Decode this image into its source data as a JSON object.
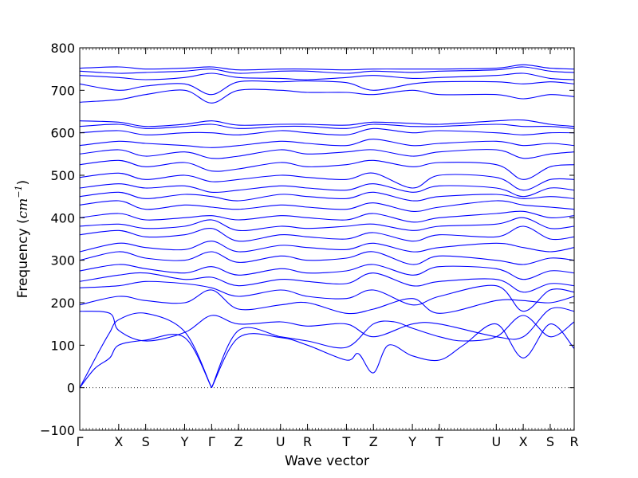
{
  "chart_data": {
    "type": "line",
    "xlabel": "Wave vector",
    "ylabel": "Frequency ",
    "ylabel_unit_base": "cm",
    "ylabel_unit_exp": "−1",
    "ylim": [
      -100,
      800
    ],
    "yticks": [
      -100,
      0,
      100,
      200,
      300,
      400,
      500,
      600,
      700,
      800
    ],
    "xlim": [
      0,
      16.5
    ],
    "grid": false,
    "zero_line": {
      "y": 0,
      "style": "dotted"
    },
    "line_color": "#0000ff",
    "high_symmetry_points": [
      {
        "label": "Γ",
        "x": 0
      },
      {
        "label": "X",
        "x": 1.3
      },
      {
        "label": "S",
        "x": 2.2
      },
      {
        "label": "Y",
        "x": 3.5
      },
      {
        "label": "Γ",
        "x": 4.4
      },
      {
        "label": "Z",
        "x": 5.3
      },
      {
        "label": "U",
        "x": 6.7
      },
      {
        "label": "R",
        "x": 7.6
      },
      {
        "label": "T",
        "x": 8.9
      },
      {
        "label": "Z",
        "x": 9.8
      },
      {
        "label": "Y",
        "x": 11.1
      },
      {
        "label": "T",
        "x": 12.0
      },
      {
        "label": "U",
        "x": 13.9
      },
      {
        "label": "X",
        "x": 14.8
      },
      {
        "label": "S",
        "x": 15.7
      },
      {
        "label": "R",
        "x": 16.5
      }
    ],
    "series": [
      {
        "x": [
          0,
          0.5,
          1.0,
          1.3,
          2.2,
          3.5,
          4.4
        ],
        "y": [
          0,
          45,
          70,
          100,
          112,
          118,
          0
        ]
      },
      {
        "x": [
          0,
          0.6,
          1.0,
          1.3,
          2.2,
          3.5,
          4.4
        ],
        "y": [
          0,
          80,
          130,
          160,
          175,
          132,
          0
        ]
      },
      {
        "x": [
          4.4,
          5.3,
          6.7,
          7.6,
          8.9,
          9.3,
          9.8,
          10.3,
          11.1,
          12.0,
          12.8,
          13.9,
          14.8,
          15.7,
          16.5
        ],
        "y": [
          0,
          118,
          118,
          100,
          65,
          80,
          35,
          100,
          75,
          65,
          100,
          150,
          70,
          150,
          92
        ]
      },
      {
        "x": [
          4.4,
          5.3,
          6.7,
          7.6,
          8.9,
          9.8,
          10.5,
          11.1,
          12.0,
          12.8,
          13.9,
          14.8,
          15.7,
          16.5
        ],
        "y": [
          0,
          135,
          120,
          110,
          95,
          150,
          155,
          140,
          120,
          110,
          120,
          170,
          120,
          155
        ]
      },
      {
        "x": [
          0,
          1.0,
          1.3,
          2.2,
          3.5,
          4.4,
          5.3,
          6.7,
          7.6,
          8.9,
          9.8,
          11.1,
          12.0,
          13.9,
          14.8,
          15.7,
          16.5
        ],
        "y": [
          180,
          175,
          135,
          110,
          130,
          170,
          150,
          155,
          145,
          150,
          120,
          150,
          150,
          120,
          120,
          185,
          180
        ]
      },
      {
        "x": [
          0,
          1.3,
          2.2,
          3.5,
          4.4,
          5.3,
          6.7,
          7.6,
          8.9,
          9.8,
          11.1,
          12.0,
          13.9,
          14.8,
          15.7,
          16.5
        ],
        "y": [
          195,
          215,
          205,
          200,
          230,
          185,
          195,
          200,
          175,
          185,
          210,
          175,
          205,
          205,
          200,
          215
        ]
      },
      {
        "x": [
          0,
          1.3,
          2.2,
          3.5,
          4.4,
          5.3,
          6.7,
          7.6,
          8.9,
          9.8,
          11.1,
          12.0,
          13.9,
          14.8,
          15.7,
          16.5
        ],
        "y": [
          235,
          240,
          250,
          245,
          235,
          215,
          230,
          215,
          210,
          230,
          195,
          215,
          240,
          180,
          230,
          225
        ]
      },
      {
        "x": [
          0,
          1.3,
          2.2,
          3.5,
          4.4,
          5.3,
          6.7,
          7.6,
          8.9,
          9.8,
          11.1,
          12.0,
          13.9,
          14.8,
          15.7,
          16.5
        ],
        "y": [
          250,
          265,
          270,
          255,
          260,
          240,
          255,
          250,
          245,
          270,
          240,
          250,
          255,
          225,
          245,
          240
        ]
      },
      {
        "x": [
          0,
          1.3,
          2.2,
          3.5,
          4.4,
          5.3,
          6.7,
          7.6,
          8.9,
          9.8,
          11.1,
          12.0,
          13.9,
          14.8,
          15.7,
          16.5
        ],
        "y": [
          275,
          290,
          280,
          270,
          285,
          265,
          280,
          270,
          275,
          290,
          265,
          285,
          280,
          255,
          275,
          270
        ]
      },
      {
        "x": [
          0,
          1.3,
          2.2,
          3.5,
          4.4,
          5.3,
          6.7,
          7.6,
          8.9,
          9.8,
          11.1,
          12.0,
          13.9,
          14.8,
          15.7,
          16.5
        ],
        "y": [
          300,
          320,
          305,
          300,
          320,
          295,
          310,
          300,
          305,
          320,
          290,
          310,
          300,
          290,
          305,
          300
        ]
      },
      {
        "x": [
          0,
          1.3,
          2.2,
          3.5,
          4.4,
          5.3,
          6.7,
          7.6,
          8.9,
          9.8,
          11.1,
          12.0,
          13.9,
          14.8,
          15.7,
          16.5
        ],
        "y": [
          320,
          340,
          330,
          325,
          345,
          320,
          335,
          330,
          325,
          340,
          320,
          330,
          340,
          330,
          320,
          330
        ]
      },
      {
        "x": [
          0,
          1.3,
          2.2,
          3.5,
          4.4,
          5.3,
          6.7,
          7.6,
          8.9,
          9.8,
          11.1,
          12.0,
          13.9,
          14.8,
          15.7,
          16.5
        ],
        "y": [
          360,
          370,
          355,
          360,
          375,
          345,
          360,
          355,
          350,
          365,
          345,
          360,
          355,
          380,
          350,
          355
        ]
      },
      {
        "x": [
          0,
          1.3,
          2.2,
          3.5,
          4.4,
          5.3,
          6.7,
          7.6,
          8.9,
          9.8,
          11.1,
          12.0,
          13.9,
          14.8,
          15.7,
          16.5
        ],
        "y": [
          380,
          385,
          375,
          380,
          395,
          370,
          380,
          375,
          380,
          385,
          370,
          380,
          385,
          400,
          375,
          380
        ]
      },
      {
        "x": [
          0,
          1.3,
          2.2,
          3.5,
          4.4,
          5.3,
          6.7,
          7.6,
          8.9,
          9.8,
          11.1,
          12.0,
          13.9,
          14.8,
          15.7,
          16.5
        ],
        "y": [
          400,
          410,
          395,
          400,
          405,
          395,
          405,
          400,
          395,
          410,
          390,
          400,
          410,
          415,
          400,
          405
        ]
      },
      {
        "x": [
          0,
          1.3,
          2.2,
          3.5,
          4.4,
          5.3,
          6.7,
          7.6,
          8.9,
          9.8,
          11.1,
          12.0,
          13.9,
          14.8,
          15.7,
          16.5
        ],
        "y": [
          430,
          440,
          420,
          430,
          425,
          420,
          430,
          425,
          420,
          435,
          415,
          425,
          440,
          430,
          425,
          420
        ]
      },
      {
        "x": [
          0,
          1.3,
          2.2,
          3.5,
          4.4,
          5.3,
          6.7,
          7.6,
          8.9,
          9.8,
          11.1,
          12.0,
          13.9,
          14.8,
          15.7,
          16.5
        ],
        "y": [
          450,
          460,
          445,
          455,
          450,
          440,
          455,
          450,
          445,
          460,
          440,
          450,
          455,
          445,
          450,
          445
        ]
      },
      {
        "x": [
          0,
          1.3,
          2.2,
          3.5,
          4.4,
          5.3,
          6.7,
          7.6,
          8.9,
          9.8,
          11.1,
          12.0,
          13.9,
          14.8,
          15.7,
          16.5
        ],
        "y": [
          470,
          480,
          470,
          475,
          460,
          465,
          475,
          470,
          465,
          480,
          460,
          475,
          470,
          450,
          470,
          465
        ]
      },
      {
        "x": [
          0,
          1.3,
          2.2,
          3.5,
          4.4,
          5.3,
          6.7,
          7.6,
          8.9,
          9.8,
          11.1,
          12.0,
          13.9,
          14.8,
          15.7,
          16.5
        ],
        "y": [
          495,
          505,
          490,
          500,
          485,
          490,
          500,
          495,
          490,
          505,
          470,
          500,
          495,
          465,
          490,
          490
        ]
      },
      {
        "x": [
          0,
          1.3,
          2.2,
          3.5,
          4.4,
          5.3,
          6.7,
          7.6,
          8.9,
          9.8,
          11.1,
          12.0,
          13.9,
          14.8,
          15.7,
          16.5
        ],
        "y": [
          525,
          535,
          520,
          530,
          510,
          515,
          530,
          520,
          525,
          535,
          520,
          530,
          525,
          490,
          520,
          525
        ]
      },
      {
        "x": [
          0,
          1.3,
          2.2,
          3.5,
          4.4,
          5.3,
          6.7,
          7.6,
          8.9,
          9.8,
          11.1,
          12.0,
          13.9,
          14.8,
          15.7,
          16.5
        ],
        "y": [
          550,
          560,
          545,
          555,
          540,
          545,
          560,
          550,
          555,
          560,
          545,
          555,
          560,
          540,
          550,
          555
        ]
      },
      {
        "x": [
          0,
          1.3,
          2.2,
          3.5,
          4.4,
          5.3,
          6.7,
          7.6,
          8.9,
          9.8,
          11.1,
          12.0,
          13.9,
          14.8,
          15.7,
          16.5
        ],
        "y": [
          570,
          580,
          575,
          570,
          565,
          570,
          580,
          575,
          570,
          585,
          570,
          575,
          580,
          570,
          575,
          570
        ]
      },
      {
        "x": [
          0,
          1.3,
          2.2,
          3.5,
          4.4,
          5.3,
          6.7,
          7.6,
          8.9,
          9.8,
          11.1,
          12.0,
          13.9,
          14.8,
          15.7,
          16.5
        ],
        "y": [
          600,
          605,
          595,
          600,
          600,
          595,
          605,
          600,
          595,
          610,
          600,
          605,
          600,
          595,
          600,
          600
        ]
      },
      {
        "x": [
          0,
          1.3,
          2.2,
          3.5,
          4.4,
          5.3,
          6.7,
          7.6,
          8.9,
          9.8,
          11.1,
          12.0,
          13.9,
          14.8,
          15.7,
          16.5
        ],
        "y": [
          615,
          620,
          610,
          615,
          620,
          610,
          615,
          615,
          610,
          620,
          615,
          615,
          620,
          615,
          615,
          610
        ]
      },
      {
        "x": [
          0,
          1.3,
          2.2,
          3.5,
          4.4,
          5.3,
          6.7,
          7.6,
          8.9,
          9.8,
          11.1,
          12.0,
          13.9,
          14.8,
          15.7,
          16.5
        ],
        "y": [
          628,
          625,
          615,
          620,
          628,
          618,
          620,
          620,
          618,
          625,
          622,
          620,
          628,
          630,
          620,
          615
        ]
      },
      {
        "x": [
          0,
          1.3,
          2.2,
          3.5,
          4.4,
          5.3,
          6.7,
          7.6,
          8.9,
          9.8,
          11.1,
          12.0,
          13.9,
          14.8,
          15.7,
          16.5
        ],
        "y": [
          672,
          678,
          690,
          700,
          670,
          700,
          700,
          695,
          695,
          690,
          700,
          690,
          690,
          680,
          690,
          685
        ]
      },
      {
        "x": [
          0,
          1.3,
          2.2,
          3.5,
          4.4,
          5.3,
          6.7,
          7.6,
          8.9,
          9.8,
          11.1,
          12.0,
          13.9,
          14.8,
          15.7,
          16.5
        ],
        "y": [
          715,
          700,
          710,
          715,
          690,
          720,
          720,
          722,
          718,
          700,
          715,
          720,
          720,
          715,
          720,
          715
        ]
      },
      {
        "x": [
          0,
          1.3,
          2.2,
          3.5,
          4.4,
          5.3,
          6.7,
          7.6,
          8.9,
          9.8,
          11.1,
          12.0,
          13.9,
          14.8,
          15.7,
          16.5
        ],
        "y": [
          735,
          730,
          725,
          730,
          740,
          730,
          728,
          725,
          730,
          735,
          728,
          730,
          735,
          740,
          728,
          725
        ]
      },
      {
        "x": [
          0,
          1.3,
          2.2,
          3.5,
          4.4,
          5.3,
          6.7,
          7.6,
          8.9,
          9.8,
          11.1,
          12.0,
          13.9,
          14.8,
          15.7,
          16.5
        ],
        "y": [
          745,
          740,
          742,
          745,
          750,
          740,
          745,
          745,
          740,
          745,
          742,
          745,
          748,
          755,
          745,
          742
        ]
      },
      {
        "x": [
          0,
          1.3,
          2.2,
          3.5,
          4.4,
          5.3,
          6.7,
          7.6,
          8.9,
          9.8,
          11.1,
          12.0,
          13.9,
          14.8,
          15.7,
          16.5
        ],
        "y": [
          752,
          755,
          750,
          752,
          755,
          748,
          750,
          750,
          748,
          750,
          750,
          750,
          752,
          760,
          752,
          750
        ]
      }
    ]
  }
}
